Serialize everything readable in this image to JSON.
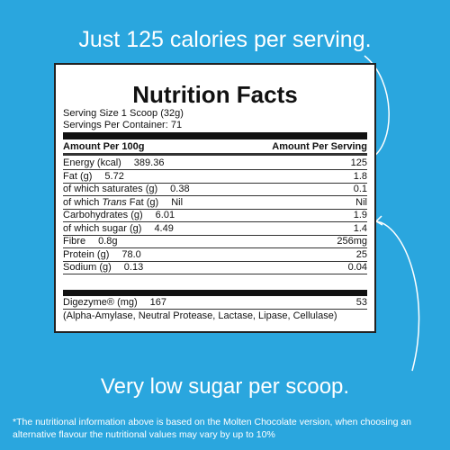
{
  "headline": "Just 125 calories per serving.",
  "label": {
    "title": "Nutrition Facts",
    "serving_size": "Serving Size 1 Scoop (32g)",
    "servings_per_container": "Servings Per Container: 71",
    "header": [
      "Amount Per 100g",
      "Amount Per Serving"
    ],
    "rows": [
      {
        "name": [
          "Energy (kcal)"
        ],
        "per_100g": "389.36",
        "per_serving": "125"
      },
      {
        "name": [
          "Fat (g)"
        ],
        "per_100g": "5.72",
        "per_serving": "1.8"
      },
      {
        "name": [
          "of which saturates (g)"
        ],
        "per_100g": "0.38",
        "per_serving": "0.1"
      },
      {
        "name": [
          "of which ",
          "Trans",
          " Fat (g)"
        ],
        "per_100g": "Nil",
        "per_serving": "Nil"
      },
      {
        "name": [
          "Carbohydrates (g)"
        ],
        "per_100g": "6.01",
        "per_serving": "1.9"
      },
      {
        "name": [
          "of which sugar (g)"
        ],
        "per_100g": "4.49",
        "per_serving": "1.4"
      },
      {
        "name": [
          "Fibre"
        ],
        "per_100g": "0.8g",
        "per_serving": "256mg"
      },
      {
        "name": [
          "Protein (g)"
        ],
        "per_100g": "78.0",
        "per_serving": "25"
      },
      {
        "name": [
          "Sodium (g)"
        ],
        "per_100g": "0.13",
        "per_serving": "0.04"
      }
    ],
    "enzyme": {
      "name": "Digezyme® (mg)",
      "per_100g": "167",
      "per_serving": "53",
      "note": "(Alpha-Amylase, Neutral Protease, Lactase, Lipase, Cellulase)"
    }
  },
  "callout": "Very low sugar per scoop.",
  "disclaimer": "*The nutritional information above is based on the Molten Chocolate version, when choosing an alternative flavour the nutritional values may vary by up to 10%"
}
